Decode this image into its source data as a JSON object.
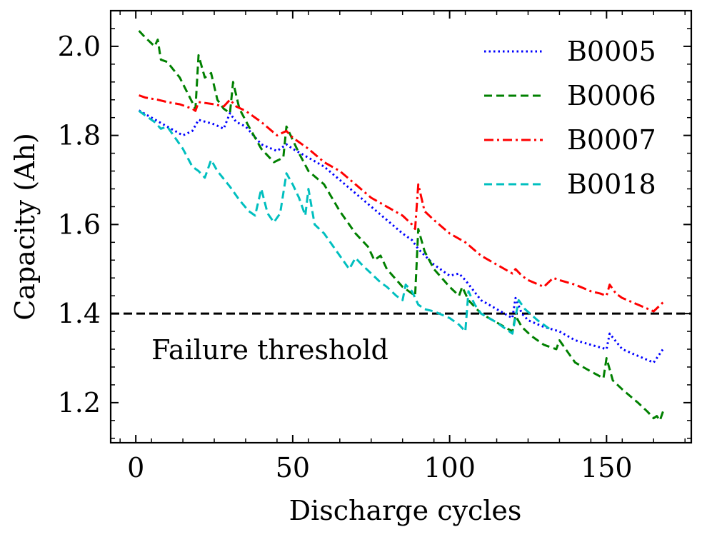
{
  "chart_data": {
    "type": "line",
    "xlabel": "Discharge cycles",
    "ylabel": "Capacity (Ah)",
    "xlim": [
      -8,
      177
    ],
    "ylim": [
      1.11,
      2.08
    ],
    "x_ticks": [
      0,
      50,
      100,
      150
    ],
    "y_ticks": [
      1.2,
      1.4,
      1.6,
      1.8,
      2.0
    ],
    "x_tick_labels": [
      "0",
      "50",
      "100",
      "150"
    ],
    "y_tick_labels": [
      "1.2",
      "1.4",
      "1.6",
      "1.8",
      "2.0"
    ],
    "grid": false,
    "legend_position": "top-right",
    "threshold": {
      "y": 1.4,
      "label": "Failure threshold",
      "color": "#000000",
      "style": "dashed"
    },
    "series": [
      {
        "name": "B0005",
        "color": "#0000ff",
        "style": "dotted",
        "points": [
          [
            1,
            1.856
          ],
          [
            5,
            1.84
          ],
          [
            10,
            1.82
          ],
          [
            15,
            1.8
          ],
          [
            18,
            1.81
          ],
          [
            20,
            1.835
          ],
          [
            25,
            1.825
          ],
          [
            28,
            1.815
          ],
          [
            30,
            1.85
          ],
          [
            32,
            1.83
          ],
          [
            35,
            1.82
          ],
          [
            40,
            1.78
          ],
          [
            45,
            1.765
          ],
          [
            48,
            1.78
          ],
          [
            50,
            1.77
          ],
          [
            55,
            1.75
          ],
          [
            60,
            1.73
          ],
          [
            65,
            1.7
          ],
          [
            70,
            1.67
          ],
          [
            75,
            1.64
          ],
          [
            80,
            1.61
          ],
          [
            85,
            1.58
          ],
          [
            88,
            1.565
          ],
          [
            90,
            1.545
          ],
          [
            95,
            1.51
          ],
          [
            100,
            1.485
          ],
          [
            103,
            1.49
          ],
          [
            105,
            1.475
          ],
          [
            110,
            1.43
          ],
          [
            115,
            1.41
          ],
          [
            120,
            1.39
          ],
          [
            121,
            1.435
          ],
          [
            123,
            1.4
          ],
          [
            125,
            1.385
          ],
          [
            130,
            1.37
          ],
          [
            135,
            1.36
          ],
          [
            140,
            1.34
          ],
          [
            145,
            1.33
          ],
          [
            150,
            1.32
          ],
          [
            151,
            1.355
          ],
          [
            155,
            1.32
          ],
          [
            160,
            1.305
          ],
          [
            165,
            1.29
          ],
          [
            168,
            1.32
          ]
        ]
      },
      {
        "name": "B0006",
        "color": "#008000",
        "style": "dashed",
        "points": [
          [
            1,
            2.035
          ],
          [
            3,
            2.02
          ],
          [
            6,
            2.0
          ],
          [
            7,
            2.015
          ],
          [
            8,
            1.97
          ],
          [
            10,
            1.965
          ],
          [
            14,
            1.93
          ],
          [
            19,
            1.86
          ],
          [
            20,
            1.98
          ],
          [
            22,
            1.93
          ],
          [
            24,
            1.94
          ],
          [
            26,
            1.88
          ],
          [
            28,
            1.86
          ],
          [
            30,
            1.85
          ],
          [
            31,
            1.92
          ],
          [
            33,
            1.86
          ],
          [
            36,
            1.82
          ],
          [
            40,
            1.77
          ],
          [
            44,
            1.74
          ],
          [
            47,
            1.75
          ],
          [
            48,
            1.82
          ],
          [
            50,
            1.79
          ],
          [
            52,
            1.76
          ],
          [
            55,
            1.72
          ],
          [
            60,
            1.69
          ],
          [
            65,
            1.63
          ],
          [
            70,
            1.58
          ],
          [
            74,
            1.55
          ],
          [
            76,
            1.52
          ],
          [
            78,
            1.53
          ],
          [
            80,
            1.5
          ],
          [
            85,
            1.46
          ],
          [
            89,
            1.44
          ],
          [
            90,
            1.59
          ],
          [
            92,
            1.54
          ],
          [
            95,
            1.5
          ],
          [
            100,
            1.46
          ],
          [
            103,
            1.44
          ],
          [
            104,
            1.46
          ],
          [
            106,
            1.43
          ],
          [
            110,
            1.4
          ],
          [
            115,
            1.38
          ],
          [
            120,
            1.36
          ],
          [
            121,
            1.395
          ],
          [
            123,
            1.37
          ],
          [
            126,
            1.35
          ],
          [
            130,
            1.33
          ],
          [
            134,
            1.32
          ],
          [
            135,
            1.34
          ],
          [
            138,
            1.31
          ],
          [
            140,
            1.29
          ],
          [
            145,
            1.27
          ],
          [
            149,
            1.255
          ],
          [
            150,
            1.3
          ],
          [
            152,
            1.25
          ],
          [
            155,
            1.23
          ],
          [
            160,
            1.2
          ],
          [
            163,
            1.18
          ],
          [
            165,
            1.165
          ],
          [
            166,
            1.17
          ],
          [
            167,
            1.16
          ],
          [
            168,
            1.18
          ]
        ]
      },
      {
        "name": "B0007",
        "color": "#ff0000",
        "style": "dashdot",
        "points": [
          [
            1,
            1.89
          ],
          [
            3,
            1.885
          ],
          [
            7,
            1.88
          ],
          [
            10,
            1.875
          ],
          [
            14,
            1.87
          ],
          [
            18,
            1.86
          ],
          [
            19,
            1.855
          ],
          [
            20,
            1.875
          ],
          [
            25,
            1.87
          ],
          [
            28,
            1.865
          ],
          [
            30,
            1.88
          ],
          [
            32,
            1.865
          ],
          [
            35,
            1.855
          ],
          [
            40,
            1.83
          ],
          [
            45,
            1.8
          ],
          [
            48,
            1.81
          ],
          [
            50,
            1.795
          ],
          [
            55,
            1.77
          ],
          [
            60,
            1.74
          ],
          [
            65,
            1.72
          ],
          [
            70,
            1.69
          ],
          [
            75,
            1.66
          ],
          [
            80,
            1.64
          ],
          [
            85,
            1.62
          ],
          [
            88,
            1.6
          ],
          [
            89,
            1.59
          ],
          [
            90,
            1.69
          ],
          [
            92,
            1.63
          ],
          [
            95,
            1.61
          ],
          [
            100,
            1.58
          ],
          [
            105,
            1.56
          ],
          [
            110,
            1.53
          ],
          [
            115,
            1.51
          ],
          [
            120,
            1.49
          ],
          [
            121,
            1.5
          ],
          [
            123,
            1.485
          ],
          [
            125,
            1.475
          ],
          [
            130,
            1.46
          ],
          [
            133,
            1.48
          ],
          [
            135,
            1.475
          ],
          [
            140,
            1.465
          ],
          [
            145,
            1.45
          ],
          [
            148,
            1.445
          ],
          [
            150,
            1.44
          ],
          [
            151,
            1.465
          ],
          [
            153,
            1.445
          ],
          [
            155,
            1.435
          ],
          [
            160,
            1.42
          ],
          [
            165,
            1.405
          ],
          [
            168,
            1.425
          ]
        ]
      },
      {
        "name": "B0018",
        "color": "#00bfbf",
        "style": "dashed",
        "points": [
          [
            1,
            1.855
          ],
          [
            3,
            1.845
          ],
          [
            6,
            1.83
          ],
          [
            8,
            1.815
          ],
          [
            10,
            1.82
          ],
          [
            12,
            1.8
          ],
          [
            15,
            1.77
          ],
          [
            18,
            1.73
          ],
          [
            20,
            1.72
          ],
          [
            22,
            1.705
          ],
          [
            24,
            1.745
          ],
          [
            26,
            1.72
          ],
          [
            30,
            1.685
          ],
          [
            33,
            1.655
          ],
          [
            36,
            1.63
          ],
          [
            38,
            1.62
          ],
          [
            40,
            1.68
          ],
          [
            42,
            1.625
          ],
          [
            44,
            1.605
          ],
          [
            46,
            1.625
          ],
          [
            48,
            1.715
          ],
          [
            50,
            1.69
          ],
          [
            52,
            1.66
          ],
          [
            54,
            1.62
          ],
          [
            55,
            1.68
          ],
          [
            57,
            1.6
          ],
          [
            60,
            1.58
          ],
          [
            63,
            1.55
          ],
          [
            66,
            1.52
          ],
          [
            68,
            1.5
          ],
          [
            70,
            1.525
          ],
          [
            72,
            1.51
          ],
          [
            75,
            1.49
          ],
          [
            78,
            1.47
          ],
          [
            80,
            1.46
          ],
          [
            83,
            1.44
          ],
          [
            85,
            1.43
          ],
          [
            86,
            1.465
          ],
          [
            88,
            1.45
          ],
          [
            90,
            1.42
          ],
          [
            92,
            1.41
          ],
          [
            95,
            1.405
          ],
          [
            100,
            1.39
          ],
          [
            103,
            1.375
          ],
          [
            105,
            1.36
          ],
          [
            106,
            1.45
          ],
          [
            108,
            1.42
          ],
          [
            110,
            1.4
          ],
          [
            115,
            1.38
          ],
          [
            120,
            1.355
          ],
          [
            122,
            1.43
          ],
          [
            124,
            1.41
          ],
          [
            128,
            1.385
          ],
          [
            132,
            1.365
          ]
        ]
      }
    ]
  }
}
